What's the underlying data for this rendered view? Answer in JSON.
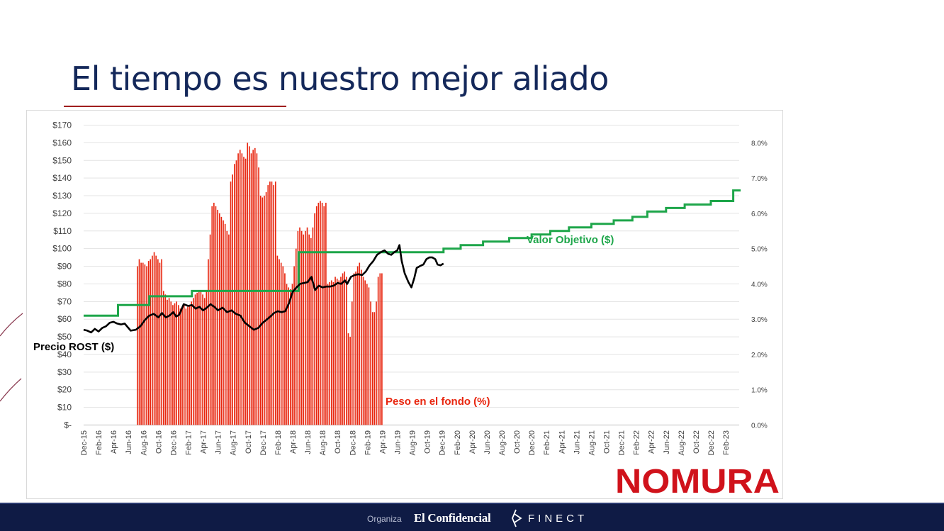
{
  "slide": {
    "title": "El tiempo es nuestro mejor aliado"
  },
  "colors": {
    "title": "#14285a",
    "accent_rule": "#a01e1e",
    "bars": "#e8260f",
    "price_line": "#000000",
    "target_line": "#1ea64a",
    "nomura": "#d0121b",
    "footer_bg": "#0f1b45"
  },
  "brand": {
    "logo": "NOMURA"
  },
  "footer": {
    "organiza": "Organiza",
    "sponsor1": "El Confidencial",
    "sponsor2": "FINECT"
  },
  "chart_data": {
    "type": "bar+line",
    "title": "",
    "left_axis": {
      "min": 0,
      "max": 170,
      "step": 10,
      "tick_labels": [
        "$-",
        "$10",
        "$20",
        "$30",
        "$40",
        "$50",
        "$60",
        "$70",
        "$80",
        "$90",
        "$100",
        "$110",
        "$120",
        "$130",
        "$140",
        "$150",
        "$160",
        "$170"
      ]
    },
    "right_axis": {
      "min": 0,
      "max": 8.5,
      "step": 1,
      "tick_labels": [
        "0.0%",
        "1.0%",
        "2.0%",
        "3.0%",
        "4.0%",
        "5.0%",
        "6.0%",
        "7.0%",
        "8.0%"
      ]
    },
    "x_labels": [
      "Dec-15",
      "Feb-16",
      "Apr-16",
      "Jun-16",
      "Aug-16",
      "Oct-16",
      "Dec-16",
      "Feb-17",
      "Apr-17",
      "Jun-17",
      "Aug-17",
      "Oct-17",
      "Dec-17",
      "Feb-18",
      "Apr-18",
      "Jun-18",
      "Aug-18",
      "Oct-18",
      "Dec-18",
      "Feb-19",
      "Apr-19",
      "Jun-19",
      "Aug-19",
      "Oct-19",
      "Dec-19",
      "Feb-20",
      "Apr-20",
      "Jun-20",
      "Aug-20",
      "Oct-20",
      "Dec-20",
      "Feb-21",
      "Apr-21",
      "Jun-21",
      "Aug-21",
      "Oct-21",
      "Dec-21",
      "Feb-22",
      "Apr-22",
      "Jun-22",
      "Aug-22",
      "Oct-22",
      "Dec-22",
      "Feb-23"
    ],
    "x_range_months": [
      0,
      88
    ],
    "annotations": {
      "price": "Precio ROST ($)",
      "weight": "Peso en el fondo (%)",
      "target": "Valor Objetivo ($)"
    },
    "series": [
      {
        "name": "Peso en el fondo (%)",
        "axis": "right",
        "kind": "bar",
        "start_month": 7.2,
        "step_months": 0.25,
        "values": [
          4.5,
          4.7,
          4.6,
          4.6,
          4.55,
          4.5,
          4.65,
          4.7,
          4.8,
          4.9,
          4.8,
          4.7,
          4.6,
          4.7,
          3.8,
          3.7,
          3.55,
          3.6,
          3.5,
          3.4,
          3.45,
          3.5,
          3.4,
          3.3,
          3.35,
          3.4,
          3.3,
          3.35,
          3.4,
          3.5,
          3.6,
          3.7,
          3.75,
          3.8,
          3.8,
          3.7,
          3.6,
          3.8,
          4.7,
          5.4,
          6.2,
          6.3,
          6.2,
          6.1,
          6.0,
          5.9,
          5.8,
          5.7,
          5.5,
          5.4,
          6.9,
          7.1,
          7.4,
          7.5,
          7.7,
          7.8,
          7.7,
          7.6,
          7.55,
          8.0,
          7.9,
          7.7,
          7.8,
          7.85,
          7.7,
          7.3,
          6.5,
          6.45,
          6.5,
          6.6,
          6.8,
          6.9,
          6.9,
          6.8,
          6.9,
          4.8,
          4.7,
          4.6,
          4.5,
          4.3,
          4.0,
          3.9,
          3.85,
          4.0,
          4.5,
          5.0,
          5.5,
          5.6,
          5.5,
          5.4,
          5.5,
          5.6,
          5.4,
          5.3,
          5.6,
          6.0,
          6.2,
          6.3,
          6.35,
          6.3,
          6.2,
          6.3,
          4.0,
          4.05,
          4.1,
          4.05,
          4.2,
          4.15,
          4.1,
          4.2,
          4.3,
          4.35,
          4.2,
          2.6,
          2.5,
          3.5,
          4.3,
          4.35,
          4.5,
          4.6,
          4.4,
          4.2,
          4.1,
          4.0,
          3.9,
          3.5,
          3.2,
          3.2,
          3.5,
          4.2,
          4.3,
          4.3
        ]
      },
      {
        "name": "Precio ROST ($)",
        "axis": "left",
        "kind": "line",
        "points": [
          [
            0,
            54
          ],
          [
            0.5,
            53.5
          ],
          [
            1,
            52.5
          ],
          [
            1.5,
            54.5
          ],
          [
            2,
            53
          ],
          [
            2.5,
            55
          ],
          [
            3,
            56
          ],
          [
            3.5,
            58
          ],
          [
            4,
            58.5
          ],
          [
            4.5,
            57.5
          ],
          [
            5,
            57
          ],
          [
            5.5,
            57.5
          ],
          [
            6,
            55
          ],
          [
            6.3,
            53.5
          ],
          [
            7,
            54
          ],
          [
            7.6,
            56
          ],
          [
            8.2,
            59.5
          ],
          [
            8.8,
            62
          ],
          [
            9.4,
            63
          ],
          [
            10,
            61
          ],
          [
            10.5,
            63.5
          ],
          [
            11,
            61
          ],
          [
            11.5,
            62
          ],
          [
            12,
            64
          ],
          [
            12.4,
            61.5
          ],
          [
            12.8,
            62.5
          ],
          [
            13.4,
            68.5
          ],
          [
            14,
            67.5
          ],
          [
            14.5,
            68
          ],
          [
            15,
            66
          ],
          [
            15.5,
            67
          ],
          [
            16,
            65
          ],
          [
            16.5,
            66.5
          ],
          [
            17,
            68.5
          ],
          [
            17.5,
            67
          ],
          [
            18,
            65
          ],
          [
            18.6,
            66.5
          ],
          [
            19.2,
            64
          ],
          [
            19.8,
            65
          ],
          [
            20.4,
            63
          ],
          [
            21,
            62
          ],
          [
            21.6,
            58
          ],
          [
            22.2,
            56
          ],
          [
            22.8,
            54
          ],
          [
            23.4,
            55
          ],
          [
            24,
            58
          ],
          [
            24.6,
            60
          ],
          [
            25,
            61.5
          ],
          [
            25.5,
            63.5
          ],
          [
            26,
            64.5
          ],
          [
            26.5,
            64
          ],
          [
            27,
            64.5
          ],
          [
            27.5,
            69
          ],
          [
            28,
            75.5
          ],
          [
            28.5,
            78
          ],
          [
            29,
            80
          ],
          [
            29.5,
            80.5
          ],
          [
            30,
            81
          ],
          [
            30.5,
            84
          ],
          [
            31,
            76.5
          ],
          [
            31.5,
            79
          ],
          [
            32,
            78
          ],
          [
            32.5,
            78.5
          ],
          [
            33,
            78.5
          ],
          [
            33.5,
            79
          ],
          [
            34,
            80.5
          ],
          [
            34.5,
            80
          ],
          [
            35,
            82
          ],
          [
            35.3,
            80
          ],
          [
            35.8,
            84
          ],
          [
            36.3,
            85
          ],
          [
            36.8,
            85.5
          ],
          [
            37.3,
            85
          ],
          [
            37.8,
            87
          ],
          [
            38.3,
            90.5
          ],
          [
            38.8,
            93
          ],
          [
            39.3,
            96.5
          ],
          [
            39.8,
            98
          ],
          [
            40.3,
            99
          ],
          [
            40.8,
            97
          ],
          [
            41.2,
            96.5
          ],
          [
            41.6,
            98
          ],
          [
            42,
            99
          ],
          [
            42.3,
            102
          ],
          [
            42.6,
            93
          ],
          [
            43,
            86
          ],
          [
            43.5,
            81
          ],
          [
            43.9,
            78
          ],
          [
            44.3,
            83.5
          ],
          [
            44.6,
            89
          ],
          [
            45,
            90
          ],
          [
            45.5,
            91
          ],
          [
            45.9,
            94
          ],
          [
            46.3,
            95
          ],
          [
            46.7,
            95
          ],
          [
            47.1,
            94
          ],
          [
            47.4,
            91
          ],
          [
            47.8,
            90.5
          ],
          [
            48.2,
            91.5
          ]
        ]
      },
      {
        "name": "Valor Objetivo ($)",
        "axis": "left",
        "kind": "step",
        "points": [
          [
            0,
            62
          ],
          [
            4.6,
            62
          ],
          [
            4.6,
            68
          ],
          [
            8.8,
            68
          ],
          [
            8.8,
            73
          ],
          [
            14.5,
            73
          ],
          [
            14.5,
            76
          ],
          [
            28.8,
            76
          ],
          [
            28.8,
            98
          ],
          [
            38.5,
            98
          ],
          [
            38.5,
            98
          ],
          [
            48.2,
            98
          ],
          [
            48.2,
            100
          ],
          [
            50.5,
            100
          ],
          [
            50.5,
            102
          ],
          [
            53.5,
            102
          ],
          [
            53.5,
            104
          ],
          [
            57,
            104
          ],
          [
            57,
            106
          ],
          [
            60,
            106
          ],
          [
            60,
            108
          ],
          [
            62.5,
            108
          ],
          [
            62.5,
            110
          ],
          [
            65,
            110
          ],
          [
            65,
            112
          ],
          [
            68,
            112
          ],
          [
            68,
            114
          ],
          [
            71,
            114
          ],
          [
            71,
            116
          ],
          [
            73.5,
            116
          ],
          [
            73.5,
            118
          ],
          [
            75.5,
            118
          ],
          [
            75.5,
            121
          ],
          [
            78,
            121
          ],
          [
            78,
            123
          ],
          [
            80.5,
            123
          ],
          [
            80.5,
            125
          ],
          [
            84,
            125
          ],
          [
            84,
            127
          ],
          [
            87,
            127
          ],
          [
            87,
            133
          ],
          [
            88,
            133
          ]
        ]
      }
    ]
  }
}
